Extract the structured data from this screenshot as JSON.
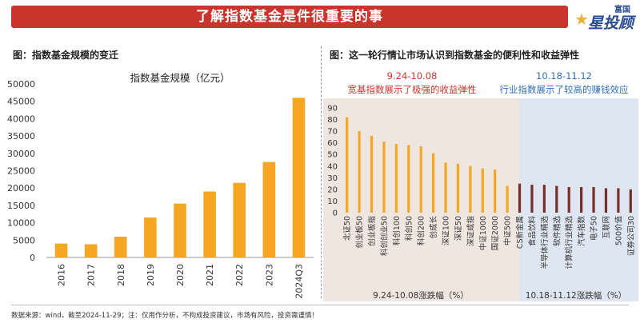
{
  "header": {
    "title": "了解指数基金是件很重要的事",
    "logo_top": "富国",
    "logo_main": "星投顾",
    "logo_star": "★"
  },
  "left_panel": {
    "title": "图：指数基金规模的变迁"
  },
  "right_panel": {
    "title": "图：这一轮行情让市场认识到指数基金的便利性和收益弹性",
    "period1_label": "9.24-10.08",
    "period1_caption": "宽基指数展示了极强的收益弹性",
    "period2_label": "10.18-11.12",
    "period2_caption": "行业指数展示了较高的赚钱效应",
    "period1_axis_label": "9.24-10.08涨跌幅（%）",
    "period2_axis_label": "10.18-11.12涨跌幅（%）"
  },
  "footer": {
    "text": "数据来源：wind，截至2024-11-29；注：仅用作分析，不构成投资建议，市场有风险，投资需谨慎！"
  },
  "colors": {
    "bar": "#f5a623",
    "bar_dark": "#7a2e28",
    "accent_red": "#c9342c",
    "accent_blue": "#2f6fb5",
    "panel_tan": "#efe6df",
    "panel_blue": "#dde6f1"
  },
  "chart_data": [
    {
      "type": "bar",
      "title": "指数基金规模（亿元）",
      "categories": [
        "2016",
        "2017",
        "2018",
        "2019",
        "2020",
        "2021",
        "2022",
        "2023",
        "2024Q3"
      ],
      "values": [
        4000,
        3800,
        6000,
        11500,
        15500,
        19000,
        21500,
        27500,
        46000
      ],
      "ylim": [
        0,
        50000
      ],
      "yticks": [
        "0",
        "5000",
        "10000",
        "15000",
        "20000",
        "25000",
        "30000",
        "35000",
        "40000",
        "45000",
        "50000"
      ],
      "grid": false
    },
    {
      "type": "bar",
      "categories": [
        "北证50",
        "创业板50",
        "创业板指",
        "科创创业50",
        "科创100",
        "科创50",
        "科创200",
        "创成长",
        "深证100",
        "深证50",
        "深证成指",
        "中证1000",
        "国证2000",
        "中证500",
        "CS新金属",
        "食品饮料",
        "半导体行业精选",
        "软件精选",
        "计算机行业精选",
        "汽车指数",
        "电子50",
        "互联网",
        "500价值",
        "证券公司30"
      ],
      "values": [
        82,
        70,
        66,
        61,
        59,
        58,
        57,
        51,
        43,
        42,
        40,
        38,
        37,
        23,
        25,
        24,
        24,
        23,
        22,
        22,
        22,
        21,
        21,
        20
      ],
      "ylim": [
        0,
        90
      ],
      "yticks": [
        "0",
        "10",
        "20",
        "30",
        "40",
        "50",
        "60",
        "70",
        "80",
        "90"
      ],
      "grid": false
    }
  ]
}
